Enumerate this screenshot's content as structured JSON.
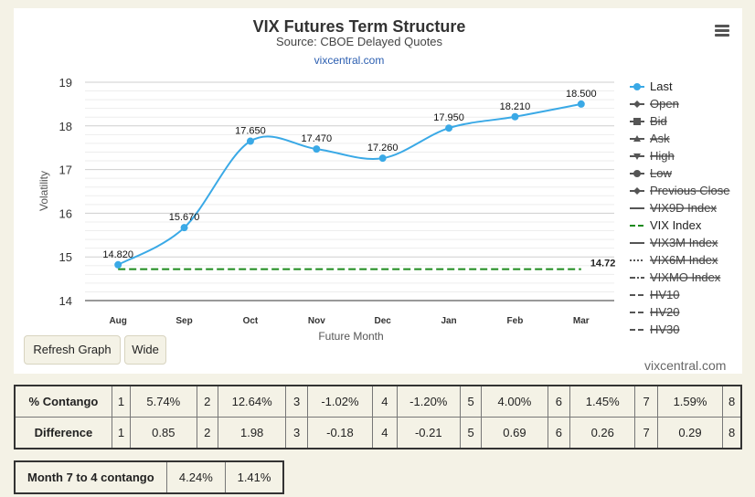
{
  "chart_data": {
    "type": "line",
    "title": "VIX Futures Term Structure",
    "subtitle": "Source: CBOE Delayed Quotes",
    "link_text": "vixcentral.com",
    "xlabel": "Future Month",
    "ylabel": "Volatility",
    "categories": [
      "Aug",
      "Sep",
      "Oct",
      "Nov",
      "Dec",
      "Jan",
      "Feb",
      "Mar"
    ],
    "ylim": [
      14,
      19
    ],
    "yticks": [
      14,
      15,
      16,
      17,
      18,
      19
    ],
    "grid": true,
    "legend_placement": "right",
    "series": [
      {
        "name": "Last",
        "values": [
          14.82,
          15.67,
          17.65,
          17.47,
          17.26,
          17.95,
          18.21,
          18.5
        ],
        "data_labels": [
          "14.820",
          "15.670",
          "17.650",
          "17.470",
          "17.260",
          "17.950",
          "18.210",
          "18.500"
        ],
        "color": "#3aa9e6",
        "visible": true
      },
      {
        "name": "VIX Index",
        "value": 14.72,
        "label": "14.72",
        "color": "#1d8a1d",
        "style": "dashed",
        "visible": true
      }
    ],
    "legend": [
      {
        "label": "Last",
        "icon": "circle-line-icon",
        "visible": true
      },
      {
        "label": "Open",
        "icon": "diamond-line-icon",
        "visible": false
      },
      {
        "label": "Bid",
        "icon": "square-line-icon",
        "visible": false
      },
      {
        "label": "Ask",
        "icon": "triangle-line-icon",
        "visible": false
      },
      {
        "label": "High",
        "icon": "triangle-down-line-icon",
        "visible": false
      },
      {
        "label": "Low",
        "icon": "circle-line-icon",
        "visible": false
      },
      {
        "label": "Previous Close",
        "icon": "diamond-line-icon",
        "visible": false
      },
      {
        "label": "VIX9D Index",
        "icon": "solid-line-icon",
        "visible": false
      },
      {
        "label": "VIX Index",
        "icon": "dashed-line-icon",
        "visible": true
      },
      {
        "label": "VIX3M Index",
        "icon": "solid-line-icon",
        "visible": false
      },
      {
        "label": "VIX6M Index",
        "icon": "dotted-line-icon",
        "visible": false
      },
      {
        "label": "VIXMO Index",
        "icon": "dashdot-line-icon",
        "visible": false
      },
      {
        "label": "HV10",
        "icon": "dashed-line-icon",
        "visible": false
      },
      {
        "label": "HV20",
        "icon": "dashed-line-icon",
        "visible": false
      },
      {
        "label": "HV30",
        "icon": "dashed-line-icon",
        "visible": false
      }
    ]
  },
  "buttons": {
    "refresh": "Refresh Graph",
    "wide": "Wide"
  },
  "watermark": "vixcentral.com",
  "menu_icon": "hamburger-icon",
  "contango_table": {
    "rows": [
      {
        "label": "% Contango",
        "cells": [
          "1",
          "5.74%",
          "2",
          "12.64%",
          "3",
          "-1.02%",
          "4",
          "-1.20%",
          "5",
          "4.00%",
          "6",
          "1.45%",
          "7",
          "1.59%",
          "8"
        ]
      },
      {
        "label": "Difference",
        "cells": [
          "1",
          "0.85",
          "2",
          "1.98",
          "3",
          "-0.18",
          "4",
          "-0.21",
          "5",
          "0.69",
          "6",
          "0.26",
          "7",
          "0.29",
          "8"
        ]
      }
    ]
  },
  "month_contango": {
    "label": "Month 7 to 4 contango",
    "values": [
      "4.24%",
      "1.41%"
    ]
  }
}
